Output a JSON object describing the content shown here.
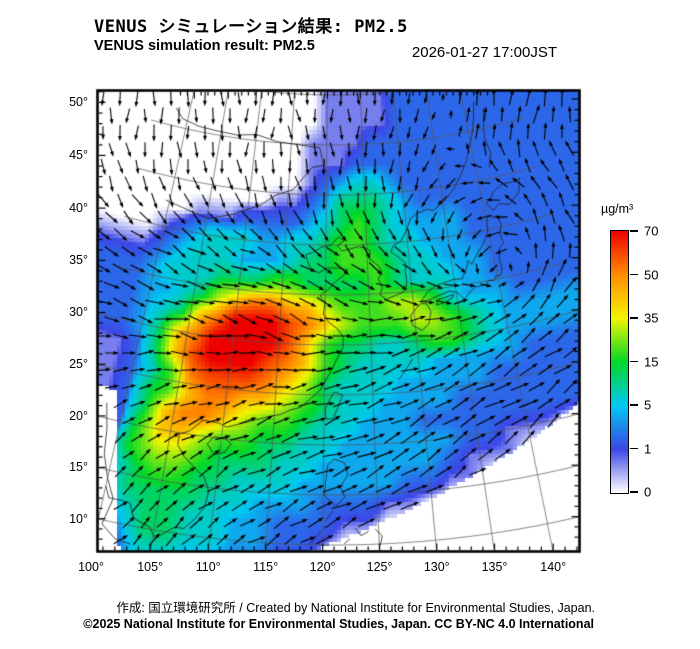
{
  "header": {
    "title_jp": "VENUS シミュレーション結果: PM2.5",
    "title_en": "VENUS simulation result: PM2.5",
    "timestamp": "2026-01-27 17:00JST"
  },
  "footer": {
    "credit": "作成: 国立環境研究所 / Created by National Institute for Environmental Studies, Japan.",
    "license": "©2025 National Institute for Environmental Studies, Japan. CC BY-NC 4.0 International"
  },
  "colorbar": {
    "unit": "µg/m³",
    "tick_values": [
      "0",
      "1",
      "5",
      "15",
      "35",
      "50",
      "70"
    ],
    "breakpoints": [
      0,
      1,
      5,
      15,
      35,
      50,
      70
    ],
    "colors": [
      "#ffffff",
      "#3c46e6",
      "#00c8f0",
      "#00d828",
      "#f4f400",
      "#ff8c00",
      "#ee0000"
    ]
  },
  "axes": {
    "lat_tick_labels": [
      "50°",
      "45°",
      "40°",
      "35°",
      "30°",
      "25°",
      "20°",
      "15°",
      "10°"
    ],
    "lat_tick_values": [
      50,
      45,
      40,
      35,
      30,
      25,
      20,
      15,
      10
    ],
    "lon_tick_labels": [
      "100°",
      "105°",
      "110°",
      "115°",
      "120°",
      "125°",
      "130°",
      "135°",
      "140°"
    ],
    "lon_tick_values": [
      100,
      105,
      110,
      115,
      120,
      125,
      130,
      135,
      140
    ]
  },
  "chart_data": {
    "type": "heatmap",
    "title": "VENUS simulation result: PM2.5",
    "units": "µg/m³",
    "valid_time": "2026-01-27 17:00JST",
    "lon_range": [
      98,
      144
    ],
    "lat_range": [
      8,
      52
    ],
    "grid_lon_step": 2,
    "grid_lat_step": 2,
    "value_key": {
      ".": null,
      "0": 0,
      "1": 0.7,
      "2": 2,
      "3": 4,
      "4": 7,
      "5": 12,
      "6": 20,
      "7": 30,
      "8": 42,
      "9": 52,
      "a": 60,
      "b": 72
    },
    "rows_north_to_south": [
      "000000000001111122222222",
      "000000000011112222222222",
      "000000000011122222222222",
      "000000000012344322222222",
      "000000001123555432222222",
      "000111222234565433332222",
      "012344433445665443332222",
      "123444333455666544333222",
      "234445556655556544433222",
      "233457899887666776433322",
      "234589bbba98766677654333",
      "23589bbbba86554456654333",
      "1258abbba986544443333322",
      "12469aaa9875444333332222",
      "125689988765443333222222",
      "125899876654433322222222",
      "02688766554433333322111.",
      "146776555443333332111...",
      "1356655444333332211.....",
      "1355554433322211........",
      "12455443322211..........",
      "123554433221............",
      "122443322..............."
    ],
    "domain_edges": {
      "southeast_no_data_line_lon_lat": [
        [
          117,
          8.5
        ],
        [
          143,
          20
        ]
      ],
      "southwest_no_data_line_lon_lat": [
        [
          102.2,
          8
        ],
        [
          99.2,
          22
        ]
      ]
    },
    "graticule": {
      "lon_lines_step_deg": 5,
      "lat_lines_step_deg": 5,
      "minor_tick_step_deg": 1
    },
    "wind": {
      "lats": [
        50,
        44,
        38,
        32,
        26,
        20,
        14,
        8
      ],
      "lons": [
        98,
        104,
        110,
        116,
        122,
        128,
        134,
        140,
        146
      ],
      "uv": [
        [
          [
            0.1,
            -0.6
          ],
          [
            0.1,
            -0.6
          ],
          [
            0.0,
            -0.6
          ],
          [
            0.1,
            -0.5
          ],
          [
            0.0,
            -0.6
          ],
          [
            -0.1,
            -0.5
          ],
          [
            -0.2,
            -0.4
          ],
          [
            0.2,
            0.5
          ],
          [
            0.3,
            0.7
          ]
        ],
        [
          [
            0.3,
            -0.5
          ],
          [
            0.3,
            -0.5
          ],
          [
            0.2,
            -0.6
          ],
          [
            0.2,
            -0.6
          ],
          [
            0.1,
            -0.7
          ],
          [
            -0.1,
            -0.6
          ],
          [
            -0.4,
            -0.4
          ],
          [
            -0.6,
            0.0
          ],
          [
            -0.2,
            0.6
          ]
        ],
        [
          [
            0.7,
            -0.3
          ],
          [
            0.8,
            -0.3
          ],
          [
            0.8,
            -0.2
          ],
          [
            0.7,
            -0.4
          ],
          [
            0.6,
            -0.5
          ],
          [
            0.5,
            -0.5
          ],
          [
            0.3,
            -0.6
          ],
          [
            -0.7,
            -0.3
          ],
          [
            0.0,
            0.8
          ]
        ],
        [
          [
            0.8,
            -0.1
          ],
          [
            0.9,
            -0.1
          ],
          [
            0.9,
            -0.2
          ],
          [
            0.9,
            -0.3
          ],
          [
            0.8,
            -0.2
          ],
          [
            0.8,
            0.0
          ],
          [
            0.9,
            0.1
          ],
          [
            0.8,
            0.2
          ],
          [
            0.7,
            0.5
          ]
        ],
        [
          [
            0.5,
            0.2
          ],
          [
            0.6,
            0.2
          ],
          [
            0.7,
            0.2
          ],
          [
            0.8,
            0.2
          ],
          [
            0.9,
            0.25
          ],
          [
            0.9,
            0.3
          ],
          [
            0.9,
            0.3
          ],
          [
            0.9,
            0.35
          ],
          [
            0.8,
            0.4
          ]
        ],
        [
          [
            0.4,
            0.4
          ],
          [
            0.5,
            0.4
          ],
          [
            0.6,
            0.4
          ],
          [
            0.8,
            0.35
          ],
          [
            0.9,
            0.35
          ],
          [
            0.9,
            0.35
          ],
          [
            0.9,
            0.4
          ],
          [
            0.9,
            0.4
          ],
          [
            0.8,
            0.4
          ]
        ],
        [
          [
            0.4,
            0.5
          ],
          [
            0.4,
            0.5
          ],
          [
            0.5,
            0.5
          ],
          [
            0.7,
            0.4
          ],
          [
            0.8,
            0.4
          ],
          [
            0.8,
            0.4
          ],
          [
            0.7,
            0.4
          ],
          [
            0.6,
            0.4
          ],
          [
            0.5,
            0.4
          ]
        ],
        [
          [
            0.3,
            0.5
          ],
          [
            0.4,
            0.5
          ],
          [
            0.4,
            0.5
          ],
          [
            0.6,
            0.4
          ],
          [
            0.7,
            0.4
          ],
          [
            0.7,
            0.4
          ],
          [
            0.6,
            0.4
          ],
          [
            0.5,
            0.4
          ],
          [
            0.4,
            0.4
          ]
        ]
      ]
    }
  }
}
